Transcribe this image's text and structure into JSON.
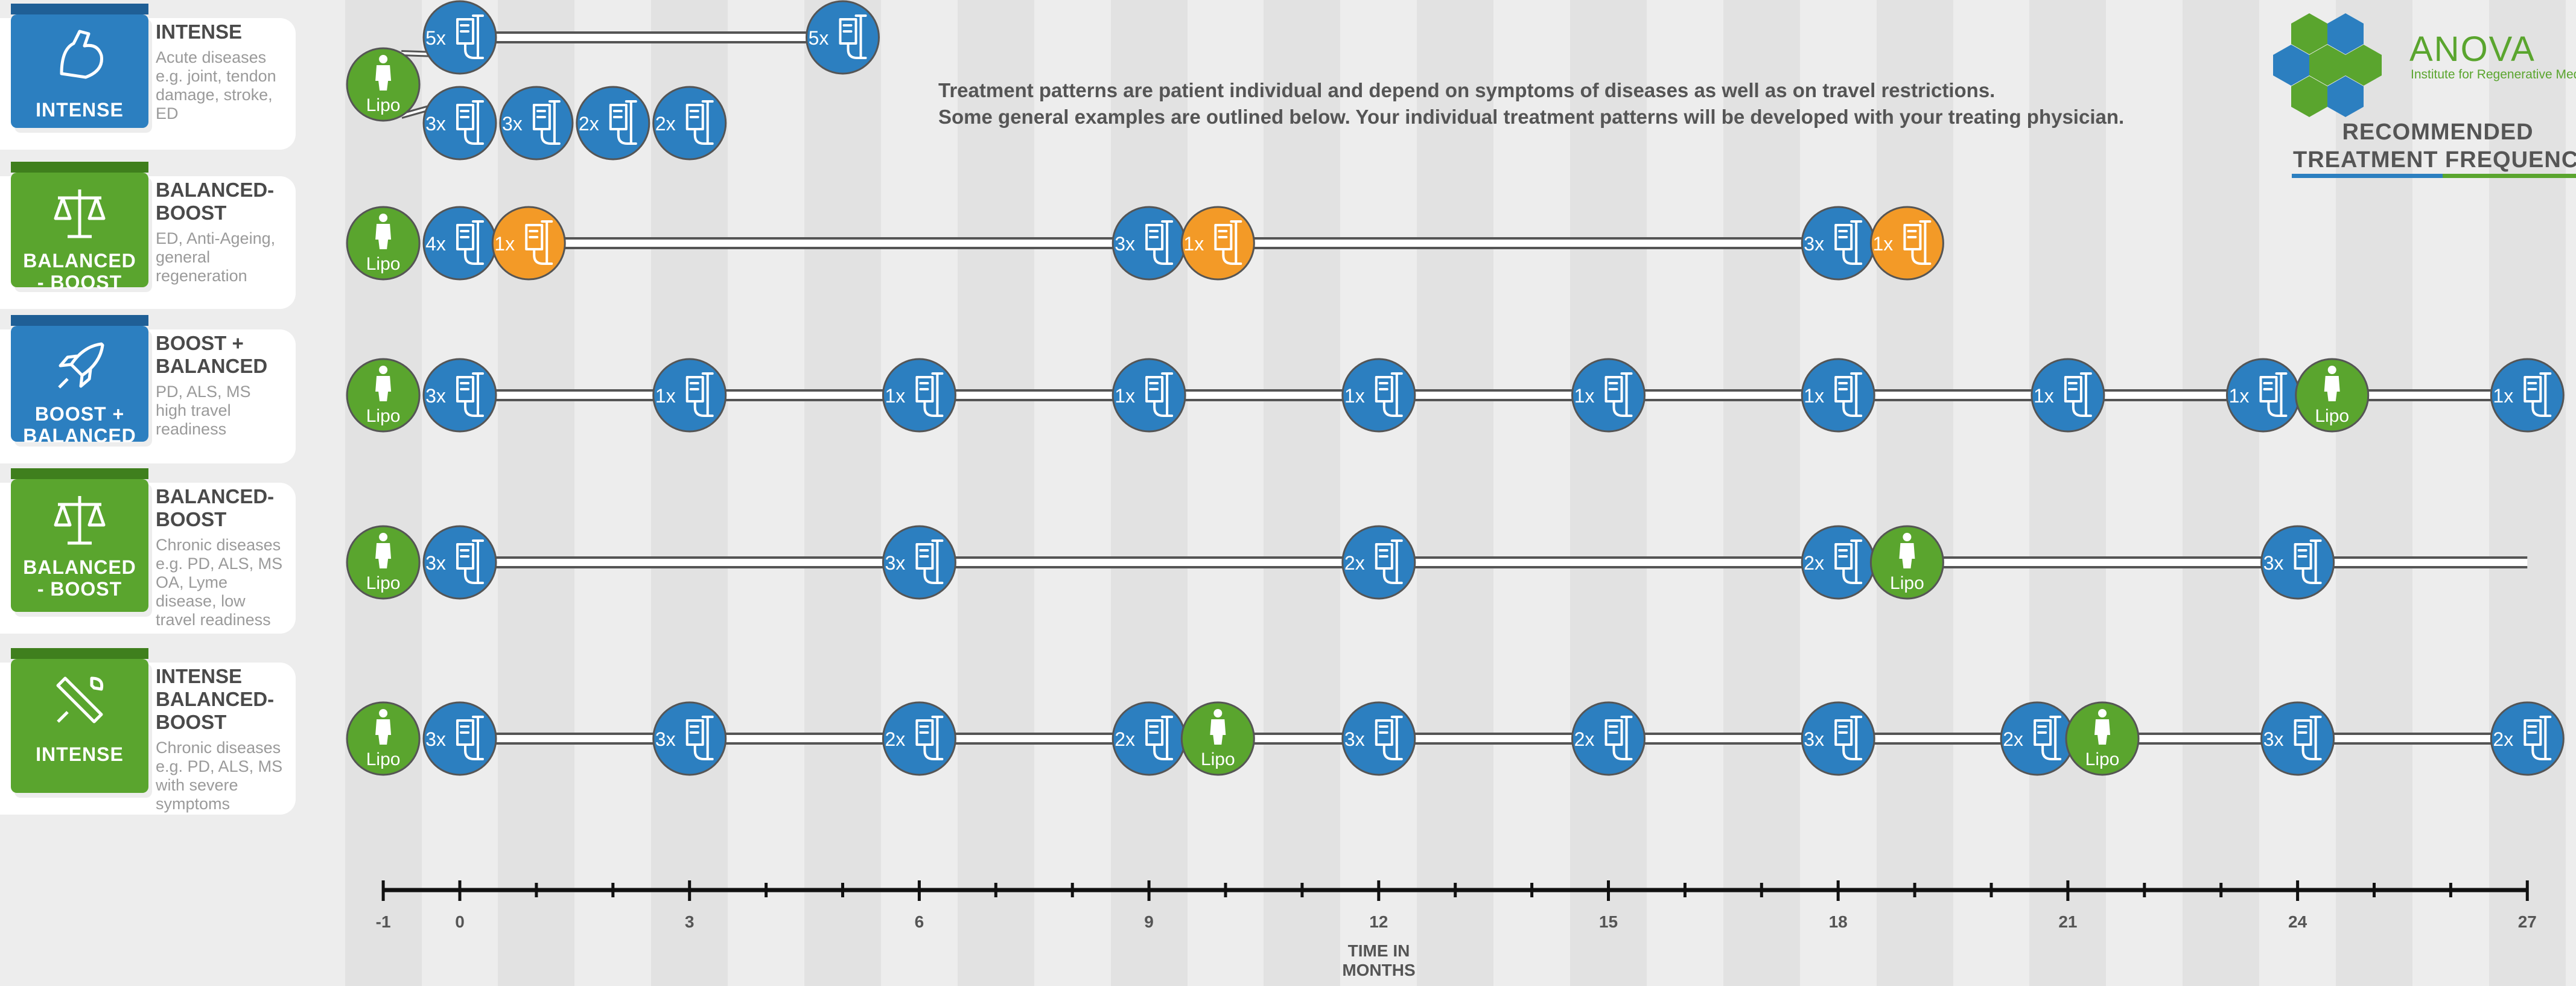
{
  "header": {
    "note_line1": "Treatment patterns are patient individual and depend on symptoms of diseases as well as on travel restrictions.",
    "note_line2": "Some general examples are outlined below. Your individual treatment patterns will be developed with your treating physician."
  },
  "brand": {
    "name": "ANOVA",
    "subtitle": "Institute for Regenerative Medicine",
    "colors": {
      "blue": "#2c7fc0",
      "green": "#5aa52e",
      "orange": "#f39a27"
    }
  },
  "frequency_title_line1": "RECOMMENDED",
  "frequency_title_line2": "TREATMENT FREQUENCY",
  "axis": {
    "ticks": [
      -1,
      0,
      3,
      6,
      9,
      12,
      15,
      18,
      21,
      24,
      27
    ],
    "tick_labels": [
      "-1",
      "0",
      "3",
      "6",
      "9",
      "12",
      "15",
      "18",
      "21",
      "24",
      "27"
    ],
    "min": -1,
    "max": 27,
    "caption_line1": "TIME IN",
    "caption_line2": "MONTHS"
  },
  "lipo_label": "Lipo",
  "rows": [
    {
      "id": "intense",
      "tab_label": [
        "INTENSE"
      ],
      "tab_color": "blue",
      "tab_icon": "muscle-arm-icon",
      "title": [
        "INTENSE"
      ],
      "description": [
        "Acute diseases",
        "e.g. joint, tendon",
        "damage, stroke,",
        "ED"
      ],
      "line_start": 0,
      "line_end": 5,
      "sessions": [
        {
          "month": -1,
          "type": "lipo"
        },
        {
          "month": 0,
          "count": "5x",
          "type": "iv",
          "lane": "upper"
        },
        {
          "month": 5,
          "count": "5x",
          "type": "iv",
          "lane": "upper"
        },
        {
          "month": 0,
          "count": "3x",
          "type": "iv",
          "lane": "lower"
        },
        {
          "month": 1,
          "count": "3x",
          "type": "iv",
          "lane": "lower"
        },
        {
          "month": 2,
          "count": "2x",
          "type": "iv",
          "lane": "lower"
        },
        {
          "month": 3,
          "count": "2x",
          "type": "iv",
          "lane": "lower"
        }
      ]
    },
    {
      "id": "balanced-boost-1",
      "tab_label": [
        "BALANCED",
        "- BOOST"
      ],
      "tab_color": "green",
      "tab_icon": "scales-icon",
      "title": [
        "BALANCED-",
        "BOOST"
      ],
      "description": [
        "ED, Anti-Ageing,",
        "general",
        "regeneration"
      ],
      "line_start": 0,
      "line_end": 18,
      "sessions": [
        {
          "month": -1,
          "type": "lipo"
        },
        {
          "month": 0,
          "count": "4x",
          "type": "iv"
        },
        {
          "month": 0.9,
          "count": "1x",
          "type": "iv",
          "color": "orange"
        },
        {
          "month": 9,
          "count": "3x",
          "type": "iv"
        },
        {
          "month": 9.9,
          "count": "1x",
          "type": "iv",
          "color": "orange"
        },
        {
          "month": 18,
          "count": "3x",
          "type": "iv"
        },
        {
          "month": 18.9,
          "count": "1x",
          "type": "iv",
          "color": "orange"
        }
      ]
    },
    {
      "id": "boost-balanced",
      "tab_label": [
        "BOOST +",
        "BALANCED"
      ],
      "tab_color": "blue",
      "tab_icon": "rocket-icon",
      "title": [
        "BOOST +",
        "BALANCED"
      ],
      "description": [
        "PD, ALS, MS",
        "high travel",
        "readiness"
      ],
      "line_start": 0,
      "line_end": 27,
      "sessions": [
        {
          "month": -1,
          "type": "lipo"
        },
        {
          "month": 0,
          "count": "3x",
          "type": "iv"
        },
        {
          "month": 3,
          "count": "1x",
          "type": "iv"
        },
        {
          "month": 6,
          "count": "1x",
          "type": "iv"
        },
        {
          "month": 9,
          "count": "1x",
          "type": "iv"
        },
        {
          "month": 12,
          "count": "1x",
          "type": "iv"
        },
        {
          "month": 15,
          "count": "1x",
          "type": "iv"
        },
        {
          "month": 18,
          "count": "1x",
          "type": "iv"
        },
        {
          "month": 21,
          "count": "1x",
          "type": "iv"
        },
        {
          "month": 23.55,
          "count": "1x",
          "type": "iv"
        },
        {
          "month": 24.45,
          "type": "lipo"
        },
        {
          "month": 27,
          "count": "1x",
          "type": "iv"
        }
      ]
    },
    {
      "id": "balanced-boost-2",
      "tab_label": [
        "BALANCED",
        "- BOOST"
      ],
      "tab_color": "green",
      "tab_icon": "scales-icon",
      "title": [
        "BALANCED-",
        "BOOST"
      ],
      "description": [
        "Chronic diseases",
        "e.g. PD, ALS, MS",
        "OA, Lyme",
        "disease, low",
        "travel readiness"
      ],
      "line_start": 0,
      "line_end": 27,
      "sessions": [
        {
          "month": -1,
          "type": "lipo"
        },
        {
          "month": 0,
          "count": "3x",
          "type": "iv"
        },
        {
          "month": 6,
          "count": "3x",
          "type": "iv"
        },
        {
          "month": 12,
          "count": "2x",
          "type": "iv"
        },
        {
          "month": 18,
          "count": "2x",
          "type": "iv"
        },
        {
          "month": 18.9,
          "type": "lipo"
        },
        {
          "month": 24,
          "count": "3x",
          "type": "iv"
        }
      ]
    },
    {
      "id": "intense-balanced-boost",
      "tab_label": [
        "INTENSE"
      ],
      "tab_color": "green",
      "tab_icon": "tools-icon",
      "title": [
        "INTENSE",
        "BALANCED-",
        "BOOST"
      ],
      "description": [
        "Chronic diseases",
        "e.g. PD, ALS, MS",
        "with severe",
        "symptoms"
      ],
      "line_start": 0,
      "line_end": 27,
      "sessions": [
        {
          "month": -1,
          "type": "lipo"
        },
        {
          "month": 0,
          "count": "3x",
          "type": "iv"
        },
        {
          "month": 3,
          "count": "3x",
          "type": "iv"
        },
        {
          "month": 6,
          "count": "2x",
          "type": "iv"
        },
        {
          "month": 9,
          "count": "2x",
          "type": "iv"
        },
        {
          "month": 9.9,
          "type": "lipo"
        },
        {
          "month": 12,
          "count": "3x",
          "type": "iv"
        },
        {
          "month": 15,
          "count": "2x",
          "type": "iv"
        },
        {
          "month": 18,
          "count": "3x",
          "type": "iv"
        },
        {
          "month": 20.6,
          "count": "2x",
          "type": "iv"
        },
        {
          "month": 21.45,
          "type": "lipo"
        },
        {
          "month": 24,
          "count": "3x",
          "type": "iv"
        },
        {
          "month": 27,
          "count": "2x",
          "type": "iv"
        }
      ]
    }
  ]
}
